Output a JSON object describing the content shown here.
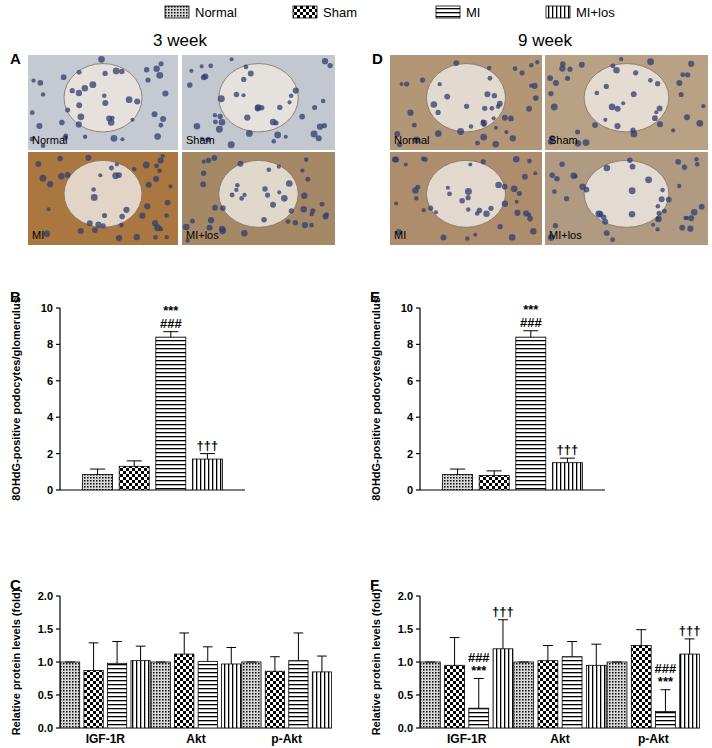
{
  "columns": [
    "3 week",
    "9 week"
  ],
  "images": [
    {
      "title": "A",
      "labels": [
        "Normal",
        "Sham",
        "MI",
        "MI+los"
      ]
    },
    {
      "title": "D",
      "labels": [
        "Normal",
        "Sham",
        "MI",
        "MI+los"
      ]
    }
  ],
  "chart_data": [
    {
      "type": "bar",
      "title": "B",
      "y_label": "8OHdG-positive podocytes/glomerulus",
      "categories": [
        null
      ],
      "series": [
        {
          "name": "Normal",
          "color": "#000000",
          "values": [
            0.85
          ],
          "errors": [
            0.3
          ]
        },
        {
          "name": "Sham",
          "color": "#000000",
          "values": [
            1.3
          ],
          "errors": [
            0.3
          ]
        },
        {
          "name": "MI",
          "color": "#000000",
          "values": [
            8.4
          ],
          "errors": [
            0.3
          ],
          "annotations": [
            [
              "***",
              "###"
            ]
          ]
        },
        {
          "name": "MI+los",
          "color": "#000000",
          "values": [
            1.7
          ],
          "errors": [
            0.3
          ],
          "annotations": [
            [
              "†††"
            ]
          ]
        }
      ],
      "ylim": [
        0,
        10
      ],
      "yticks": [
        0,
        2,
        4,
        6,
        8,
        10
      ],
      "legend": "top"
    },
    {
      "type": "bar",
      "title": "E",
      "y_label": "8OHdG-positive podocytes/glomerulus",
      "categories": [
        null
      ],
      "series": [
        {
          "color": "#000000",
          "values": [
            0.85
          ],
          "errors": [
            0.3
          ]
        },
        {
          "color": "#000000",
          "values": [
            0.8
          ],
          "errors": [
            0.25
          ]
        },
        {
          "color": "#000000",
          "values": [
            8.4
          ],
          "errors": [
            0.35
          ],
          "annotations": [
            [
              "***",
              "###"
            ]
          ]
        },
        {
          "color": "#000000",
          "values": [
            1.5
          ],
          "errors": [
            0.25
          ],
          "annotations": [
            [
              "†††"
            ]
          ]
        }
      ],
      "ylim": [
        0,
        10
      ],
      "yticks": [
        0,
        2,
        4,
        6,
        8,
        10
      ]
    },
    {
      "type": "bar",
      "title": "C",
      "y_label": "Relative protein levels (fold)",
      "categories": [
        "IGF-1R",
        "Akt",
        "p-Akt"
      ],
      "series": [
        {
          "color": "#000000",
          "values": [
            1.0,
            1.0,
            1.0
          ],
          "errors": [
            0,
            0,
            0
          ]
        },
        {
          "color": "#000000",
          "values": [
            0.87,
            1.12,
            0.86
          ],
          "errors": [
            0.42,
            0.32,
            0.22
          ]
        },
        {
          "color": "#000000",
          "values": [
            0.98,
            1.01,
            1.02
          ],
          "errors": [
            0.33,
            0.22,
            0.42
          ]
        },
        {
          "color": "#000000",
          "values": [
            1.02,
            0.97,
            0.85
          ],
          "errors": [
            0.22,
            0.25,
            0.24
          ]
        }
      ],
      "ylim": [
        0,
        2
      ],
      "yticks": [
        {
          "value": 0,
          "label": "0.0"
        },
        0.5,
        {
          "value": 1,
          "label": "1.0"
        },
        1.5,
        {
          "value": 2,
          "label": "2.0"
        }
      ]
    },
    {
      "type": "bar",
      "title": "F",
      "y_label": "Relative protein levels (fold)",
      "categories": [
        "IGF-1R",
        "Akt",
        "p-Akt"
      ],
      "series": [
        {
          "color": "#000000",
          "values": [
            1.0,
            1.0,
            1.0
          ],
          "errors": [
            0,
            0,
            0
          ]
        },
        {
          "color": "#000000",
          "values": [
            0.95,
            1.02,
            1.25
          ],
          "errors": [
            0.42,
            0.23,
            0.24
          ]
        },
        {
          "color": "#000000",
          "values": [
            0.3,
            1.08,
            0.25
          ],
          "errors": [
            0.45,
            0.23,
            0.33
          ],
          "annotations": [
            [
              "###",
              "***"
            ],
            null,
            [
              "###",
              "***"
            ]
          ]
        },
        {
          "color": "#000000",
          "values": [
            1.2,
            0.95,
            1.12
          ],
          "errors": [
            0.44,
            0.32,
            0.23
          ],
          "annotations": [
            [
              "†††"
            ],
            null,
            [
              "†††"
            ]
          ]
        }
      ],
      "ylim": [
        0,
        2
      ],
      "yticks": [
        {
          "value": 0,
          "label": "0.0"
        },
        0.5,
        {
          "value": 1,
          "label": "1.0"
        },
        1.5,
        {
          "value": 2,
          "label": "2.0"
        }
      ]
    }
  ]
}
